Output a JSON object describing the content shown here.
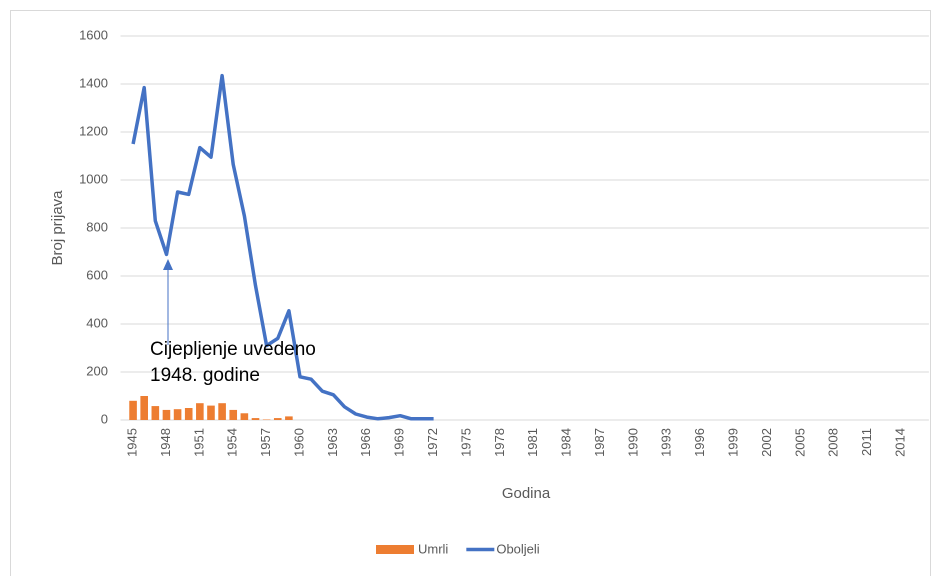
{
  "chart_data": {
    "type": "bar_line",
    "x_label": "Godina",
    "y_label": "Broj prijava",
    "categories": [
      "1945",
      null,
      null,
      "1948",
      null,
      null,
      "1951",
      null,
      null,
      "1954",
      null,
      null,
      "1957",
      null,
      null,
      "1960",
      null,
      null,
      "1963",
      null,
      null,
      "1966",
      null,
      null,
      "1969",
      null,
      null,
      "1972",
      null,
      null,
      "1975",
      null,
      null,
      "1978",
      null,
      null,
      "1981",
      null,
      null,
      "1984",
      null,
      null,
      "1987",
      null,
      null,
      "1990",
      null,
      null,
      "1993",
      null,
      null,
      "1996",
      null,
      null,
      "1999",
      null,
      null,
      "2002",
      null,
      null,
      "2005",
      null,
      null,
      "2008",
      null,
      null,
      "2011",
      null,
      null,
      "2014",
      null,
      null
    ],
    "series": [
      {
        "name": "Umrli",
        "kind": "bar",
        "color": "#ed7d31",
        "values": [
          80,
          100,
          58,
          42,
          45,
          50,
          70,
          60,
          70,
          42,
          28,
          8,
          2,
          8,
          15,
          null,
          null,
          null,
          null,
          null,
          null,
          null,
          null,
          null,
          null,
          null,
          null,
          null,
          null,
          null,
          null,
          null,
          null,
          null,
          null,
          null,
          null,
          null,
          null,
          null,
          null,
          null,
          null,
          null,
          null,
          null,
          null,
          null,
          null,
          null,
          null,
          null,
          null,
          null,
          null,
          null,
          null,
          null,
          null,
          null,
          null,
          null,
          null,
          null,
          null,
          null,
          null,
          null,
          null,
          null,
          null,
          null
        ]
      },
      {
        "name": "Oboljeli",
        "kind": "line",
        "color": "#4472c4",
        "values": [
          1150,
          1385,
          830,
          690,
          950,
          940,
          1135,
          1095,
          1435,
          1065,
          850,
          560,
          310,
          340,
          455,
          180,
          170,
          120,
          105,
          55,
          25,
          12,
          5,
          10,
          18,
          5,
          5,
          5,
          null,
          null,
          null,
          null,
          null,
          null,
          null,
          null,
          null,
          null,
          null,
          null,
          null,
          null,
          null,
          null,
          null,
          null,
          null,
          null,
          null,
          null,
          null,
          null,
          null,
          null,
          null,
          null,
          null,
          null,
          null,
          null,
          null,
          null,
          null,
          null,
          null,
          null,
          null,
          null,
          null,
          null,
          null,
          null
        ]
      }
    ],
    "ylim": [
      0,
      1600
    ],
    "yticks": [
      0,
      200,
      400,
      600,
      800,
      1000,
      1200,
      1400,
      1600
    ],
    "grid": true,
    "annotation": [
      "Cijepljenje uvedeno",
      "1948. godine"
    ],
    "legend": "bottom"
  }
}
